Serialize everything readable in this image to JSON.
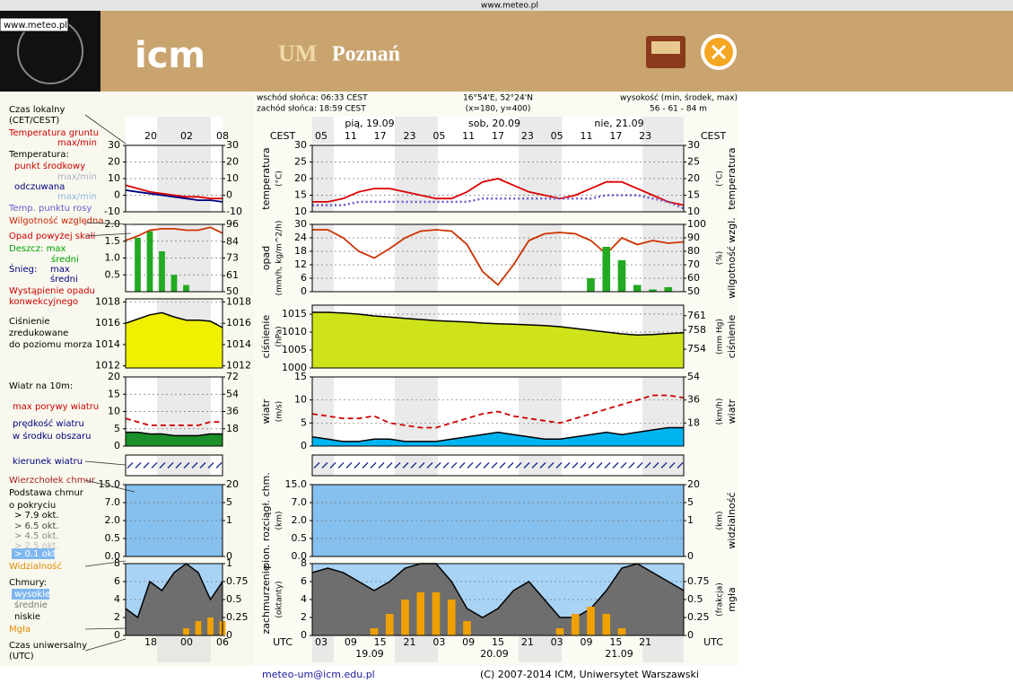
{
  "header": {
    "url": "www.meteo.pl",
    "badge": "www.meteo.pl",
    "logo": "icm",
    "title_um": "UM",
    "title_city": "Poznań"
  },
  "info": {
    "sunrise": "wschód słońca: 06:33 CEST",
    "sunset": "zachód słońca: 18:59 CEST",
    "coords": "16°54'E, 52°24'N",
    "grid": "(x=180, y=400)",
    "height_label": "wysokość (min, środek, max)",
    "height": "56 - 61 - 84 m"
  },
  "legend": [
    {
      "text": "Czas lokalny",
      "color": "#000000"
    },
    {
      "text": "(CET/CEST)",
      "color": "#000000"
    },
    {
      "text": "Temperatura gruntu",
      "color": "#cc0000"
    },
    {
      "text": "max/min",
      "color": "#cc0000"
    },
    {
      "text": "Temperatura:",
      "color": "#000000"
    },
    {
      "text": "punkt środkowy",
      "color": "#cc0000"
    },
    {
      "text": "max/min",
      "color": "#b0b0c8"
    },
    {
      "text": "odczuwana",
      "color": "#000080"
    },
    {
      "text": "max/min",
      "color": "#9ab8e8"
    },
    {
      "text": "Temp. punktu rosy",
      "color": "#6a5acd"
    },
    {
      "text": "Wilgotność względna",
      "color": "#cc2200"
    },
    {
      "text": "Opad powyżej skali",
      "color": "#cc0000"
    },
    {
      "text": "Deszcz: max",
      "color": "#00a000"
    },
    {
      "text": "średni",
      "color": "#00a000"
    },
    {
      "text": "Śnieg:",
      "color": "#000080"
    },
    {
      "text": "max",
      "color": "#000080"
    },
    {
      "text": "średni",
      "color": "#000080"
    },
    {
      "text": "Wystąpienie opadu",
      "color": "#cc0000"
    },
    {
      "text": "konwekcyjnego",
      "color": "#cc0000"
    },
    {
      "text": "Ciśnienie",
      "color": "#000000"
    },
    {
      "text": "zredukowane",
      "color": "#000000"
    },
    {
      "text": "do poziomu morza",
      "color": "#000000"
    },
    {
      "text": "Wiatr na 10m:",
      "color": "#000000"
    },
    {
      "text": "max porywy wiatru",
      "color": "#cc0000"
    },
    {
      "text": "prędkość wiatru",
      "color": "#000080"
    },
    {
      "text": "w środku obszaru",
      "color": "#000080"
    },
    {
      "text": "kierunek wiatru",
      "color": "#000080"
    },
    {
      "text": "Wierzchołek chmur",
      "color": "#aa2222"
    },
    {
      "text": "Podstawa chmur",
      "color": "#000000"
    },
    {
      "text": "o pokryciu",
      "color": "#000000"
    },
    {
      "text": "> 7.9 okt.",
      "color": "#000000"
    },
    {
      "text": "> 6.5 okt.",
      "color": "#444444"
    },
    {
      "text": "> 4.5 okt.",
      "color": "#888888"
    },
    {
      "text": "> 2.5 okt.",
      "color": "#bbbbbb"
    },
    {
      "text": "> 0.1 okt",
      "color": "#ffffff"
    },
    {
      "text": "Widzialność",
      "color": "#e08a00"
    },
    {
      "text": "Chmury:",
      "color": "#000000"
    },
    {
      "text": "wysokie",
      "color": "#ffffff"
    },
    {
      "text": "średnie",
      "color": "#777777"
    },
    {
      "text": "niskie",
      "color": "#000000"
    },
    {
      "text": "Mgła",
      "color": "#e08a00"
    },
    {
      "text": "Czas uniwersalny",
      "color": "#000000"
    },
    {
      "text": "(UTC)",
      "color": "#000000"
    }
  ],
  "time": {
    "cest": "CEST",
    "utc": "UTC",
    "days": [
      "pią, 19.09",
      "sob, 20.09",
      "nie, 21.09"
    ],
    "cest_hours": [
      "05",
      "11",
      "17",
      "23",
      "05",
      "11",
      "17",
      "23",
      "05",
      "11",
      "17",
      "23"
    ],
    "utc_hours": [
      "03",
      "09",
      "15",
      "21",
      "03",
      "09",
      "15",
      "21",
      "03",
      "09",
      "15",
      "21"
    ],
    "utc_dates": [
      "19.09",
      "20.09",
      "21.09"
    ],
    "mini_local": [
      "20",
      "02",
      "08"
    ],
    "mini_utc": [
      "18",
      "00",
      "06"
    ]
  },
  "main_panels": [
    {
      "title_left": [
        "temperatura",
        "(°C)"
      ],
      "title_right": [
        "(°C)",
        "temperatura"
      ],
      "ticks_left": [
        30,
        25,
        20,
        15,
        10
      ],
      "ticks_right": [
        30,
        25,
        20,
        15,
        10
      ],
      "ylim": [
        10,
        30
      ],
      "y2lim": [
        10,
        30
      ],
      "series": [
        {
          "style": "line",
          "color": "#dd0000",
          "values": [
            13,
            13,
            14,
            16,
            17,
            17,
            16,
            15,
            14,
            14,
            16,
            19,
            20,
            18,
            16,
            15,
            14,
            15,
            17,
            19,
            19,
            17,
            15,
            13,
            12
          ]
        },
        {
          "style": "dotted",
          "color": "#6a5acd",
          "values": [
            12,
            12,
            12,
            13,
            13,
            13,
            13,
            13,
            13,
            13,
            13,
            14,
            14,
            14,
            14,
            14,
            14,
            14,
            14,
            15,
            15,
            15,
            14,
            13,
            11
          ]
        }
      ]
    },
    {
      "title_left": [
        "opad",
        "(mm/h, kg/m^2/h)"
      ],
      "title_right": [
        "(%)",
        "wilgotność wzgl."
      ],
      "ticks_left": [
        30,
        24,
        18,
        12,
        6,
        0
      ],
      "ticks_right": [
        100,
        90,
        80,
        70,
        60,
        50
      ],
      "ylim": [
        0,
        30
      ],
      "y2lim": [
        50,
        100
      ],
      "series": [
        {
          "style": "line",
          "axis": "y2",
          "color": "#cc3300",
          "values": [
            96,
            96,
            90,
            80,
            75,
            82,
            90,
            95,
            96,
            95,
            85,
            65,
            55,
            70,
            88,
            93,
            94,
            93,
            88,
            78,
            90,
            85,
            88,
            86,
            87
          ]
        },
        {
          "style": "bars",
          "color": "#22aa22",
          "values": [
            0,
            0,
            0,
            0,
            0,
            0,
            0,
            0,
            0,
            0,
            0,
            0,
            0,
            0,
            0,
            0,
            0,
            0,
            6,
            20,
            14,
            3,
            1,
            2,
            0
          ]
        }
      ]
    },
    {
      "title_left": [
        "ciśnienie",
        "(hPa)"
      ],
      "title_right": [
        "(mm Hg)",
        "ciśnienie"
      ],
      "ticks_left": [
        1015,
        1010,
        1005,
        1000
      ],
      "ticks_right": [
        761,
        758,
        754
      ],
      "ylim": [
        1000,
        1017.5
      ],
      "y2lim": [
        750.1,
        763.2
      ],
      "series": [
        {
          "style": "area",
          "color": "#cfe31a",
          "values": [
            1015.5,
            1015.5,
            1015.3,
            1015,
            1014.5,
            1014.2,
            1013.8,
            1013.5,
            1013.2,
            1013,
            1012.8,
            1012.5,
            1012.3,
            1012.2,
            1012,
            1011.8,
            1011.5,
            1011,
            1010.5,
            1010,
            1009.5,
            1009.2,
            1009.3,
            1009.6,
            1009.8
          ]
        }
      ]
    },
    {
      "title_left": [
        "wiatr",
        "(m/s)"
      ],
      "title_right": [
        "(km/h)",
        "wiatr"
      ],
      "ticks_left": [
        15,
        10,
        5,
        0
      ],
      "ticks_right": [
        54,
        36,
        18
      ],
      "ylim": [
        0,
        15
      ],
      "y2lim": [
        0,
        54
      ],
      "series": [
        {
          "style": "area",
          "color": "#00b4f0",
          "values": [
            2,
            1.5,
            1,
            1,
            1.5,
            1.5,
            1,
            1,
            1,
            1.5,
            2,
            2.5,
            3,
            2.5,
            2,
            1.5,
            1.5,
            2,
            2.5,
            3,
            2.5,
            3,
            3.5,
            4,
            4
          ]
        },
        {
          "style": "dashed",
          "color": "#cc0000",
          "values": [
            7,
            6.5,
            6,
            6,
            6.5,
            5,
            4.5,
            4,
            4,
            5,
            6,
            7,
            7.5,
            6.5,
            6,
            5.5,
            5,
            6,
            7,
            8,
            9,
            10,
            11,
            11,
            10.5
          ]
        }
      ]
    },
    {
      "title_left": [],
      "title_right": [],
      "ticks_left": [],
      "ticks_right": [],
      "series": []
    },
    {
      "title_left": [
        "pion. rozciągł. chm.",
        "(km)"
      ],
      "title_right": [
        "(km)",
        "widzialność"
      ],
      "ticks_left": [
        "15.0",
        "7.0",
        "2.0",
        "0.5",
        "0.0"
      ],
      "ticks_right": [
        "20",
        "5",
        "1",
        null,
        "0"
      ],
      "series": []
    },
    {
      "title_left": [
        "zachmurzenie",
        "(oktanty)"
      ],
      "title_right": [
        "(frakcja)",
        "mgła"
      ],
      "ticks_left": [
        8,
        6,
        4,
        2,
        0
      ],
      "ticks_right": [
        0.75,
        0.5,
        0.25,
        0
      ],
      "ylim": [
        0,
        8
      ],
      "y2lim": [
        0,
        1
      ],
      "series": [
        {
          "style": "area",
          "color": "#6e6e6e",
          "values": [
            7,
            7.5,
            7,
            6,
            5,
            6,
            7.5,
            8,
            8,
            6,
            3,
            2,
            3,
            5,
            6,
            4,
            2,
            2,
            3,
            5,
            7.5,
            8,
            7,
            6,
            5
          ]
        },
        {
          "style": "bars",
          "axis": "y2",
          "color": "#f0a000",
          "values": [
            0,
            0,
            0,
            0,
            0.1,
            0.3,
            0.5,
            0.6,
            0.6,
            0.5,
            0.2,
            0,
            0,
            0,
            0,
            0,
            0.1,
            0.3,
            0.4,
            0.3,
            0.1,
            0,
            0,
            0,
            0
          ]
        }
      ]
    }
  ],
  "mini_panels": [
    {
      "ticks_left": [
        30,
        20,
        10,
        0,
        -10
      ],
      "ticks_right": [
        30,
        20,
        10,
        0,
        -10
      ],
      "ylim": [
        -10,
        30
      ],
      "y2lim": [
        -10,
        30
      ],
      "series": [
        {
          "style": "line",
          "color": "#dd0000",
          "values": [
            6,
            4,
            2,
            1,
            0,
            -1,
            -1,
            -2,
            -2
          ]
        },
        {
          "style": "line",
          "color": "#000080",
          "values": [
            3,
            2,
            1,
            0,
            -1,
            -2,
            -3,
            -3,
            -4
          ]
        }
      ]
    },
    {
      "ticks_left": [
        "2.0",
        "1.5",
        "1.0",
        "0.5",
        null
      ],
      "ticks_right": [
        96,
        84,
        73,
        61,
        50
      ],
      "ylim": [
        0,
        2
      ],
      "y2lim": [
        50,
        96
      ],
      "series": [
        {
          "style": "bars",
          "color": "#22aa22",
          "values": [
            0,
            1.6,
            1.8,
            1.2,
            0.5,
            0.2,
            0,
            0,
            0
          ]
        },
        {
          "style": "line",
          "axis": "y2",
          "color": "#cc3300",
          "values": [
            85,
            88,
            92,
            93,
            93,
            92,
            92,
            94,
            90
          ]
        }
      ]
    },
    {
      "ticks_left": [
        1018,
        1016,
        1014,
        1012
      ],
      "ticks_right": [
        1018,
        1016,
        1014,
        1012
      ],
      "ylim": [
        1011.8,
        1018.3
      ],
      "y2lim": [
        1011.8,
        1018.3
      ],
      "series": [
        {
          "style": "area",
          "color": "#f0f000",
          "values": [
            1016,
            1016.4,
            1016.8,
            1017,
            1016.6,
            1016.3,
            1016.3,
            1016.2,
            1015.6
          ]
        }
      ]
    },
    {
      "ticks_left": [
        20,
        15,
        10,
        5,
        0
      ],
      "ticks_right": [
        72,
        54,
        36,
        18
      ],
      "ylim": [
        0,
        20
      ],
      "y2lim": [
        0,
        72
      ],
      "series": [
        {
          "style": "area",
          "color": "#1a8f2a",
          "values": [
            4,
            4,
            3.5,
            3.5,
            3,
            3,
            3,
            3.5,
            3.5
          ]
        },
        {
          "style": "dashed",
          "color": "#cc0000",
          "values": [
            8,
            7,
            6,
            6,
            6,
            6,
            6,
            7,
            7
          ]
        }
      ]
    },
    {
      "ticks_left": [],
      "ticks_right": [],
      "series": []
    },
    {
      "ticks_left": [
        "15.0",
        "7.0",
        "2.0",
        "0.5",
        "0.0"
      ],
      "ticks_right": [
        "20",
        "5",
        "1",
        null,
        "0"
      ],
      "series": []
    },
    {
      "ticks_left": [
        8,
        6,
        4,
        2,
        0
      ],
      "ticks_right": [
        1,
        0.75,
        0.5,
        0.25,
        0
      ],
      "ylim": [
        0,
        8
      ],
      "y2lim": [
        0,
        1
      ],
      "series": [
        {
          "style": "area",
          "color": "#6e6e6e",
          "values": [
            3,
            2,
            6,
            5,
            7,
            8,
            7,
            4,
            6
          ]
        },
        {
          "style": "bars",
          "axis": "y2",
          "color": "#f0a000",
          "values": [
            0,
            0,
            0,
            0,
            0,
            0.1,
            0.2,
            0.25,
            0.2
          ]
        }
      ]
    }
  ],
  "footer": {
    "email": "meteo-um@icm.edu.pl",
    "copyright": "(C) 2007-2014 ICM, Uniwersytet Warszawski"
  }
}
